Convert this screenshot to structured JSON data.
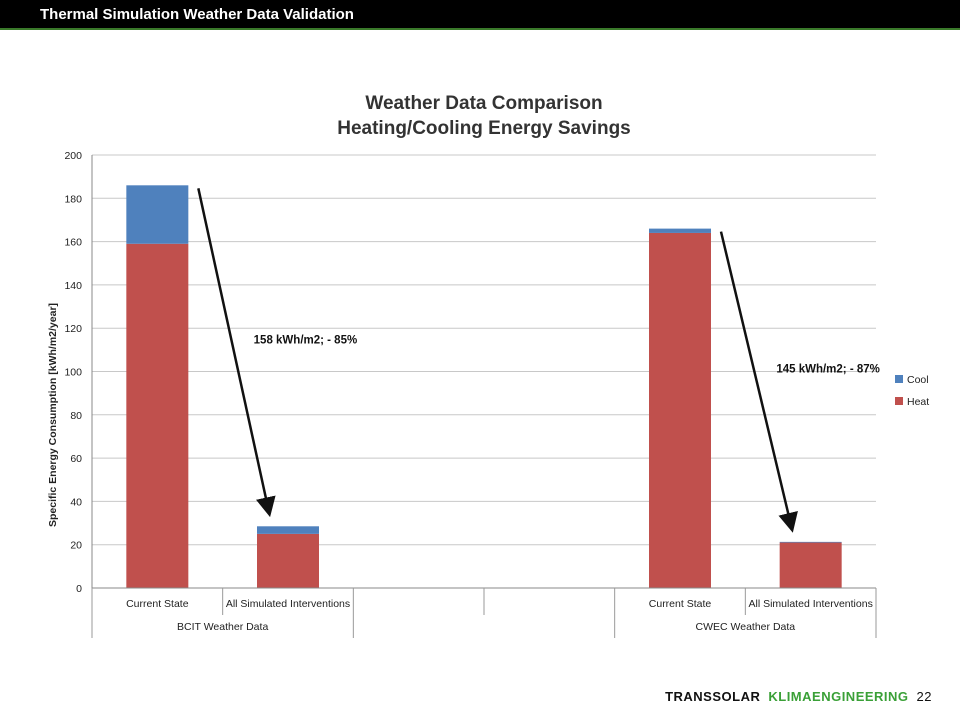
{
  "slide": {
    "title": "Thermal Simulation Weather Data Validation",
    "page_number": "22"
  },
  "footer": {
    "brand": "TRANSSOLAR",
    "sub": "KLIMAENGINEERING"
  },
  "colors": {
    "heat": "#c0504d",
    "cool": "#4f81bd",
    "title_bar": "#000000",
    "accent_green": "#3aa037"
  },
  "chart_data": {
    "type": "bar",
    "stacked": true,
    "title_line1": "Weather Data Comparison",
    "title_line2": "Heating/Cooling Energy Savings",
    "ylabel": "Specific Energy Consumption [kWh/m2/year]",
    "xlabel": "",
    "ylim": [
      0,
      200
    ],
    "yticks": [
      0,
      20,
      40,
      60,
      80,
      100,
      120,
      140,
      160,
      180,
      200
    ],
    "grid": true,
    "legend_position": "right",
    "groups": [
      {
        "label": "BCIT Weather Data",
        "categories": [
          "Current State",
          "All Simulated Interventions"
        ]
      },
      {
        "label": "",
        "categories": [
          "",
          ""
        ]
      },
      {
        "label": "CWEC Weather Data",
        "categories": [
          "Current State",
          "All Simulated Interventions"
        ]
      }
    ],
    "categories": [
      "Current State",
      "All Simulated Interventions",
      "",
      "",
      "Current State",
      "All Simulated Interventions"
    ],
    "series": [
      {
        "name": "Heat",
        "values": [
          159,
          25,
          null,
          null,
          164,
          21
        ]
      },
      {
        "name": "Cool",
        "values": [
          27,
          3.5,
          null,
          null,
          2,
          0.3
        ]
      }
    ],
    "legend": [
      "Cool",
      "Heat"
    ],
    "annotations": [
      {
        "text": "158 kWh/m2; - 85%",
        "from_category": 0,
        "to_category": 1
      },
      {
        "text": "145 kWh/m2; - 87%",
        "from_category": 4,
        "to_category": 5
      }
    ]
  }
}
